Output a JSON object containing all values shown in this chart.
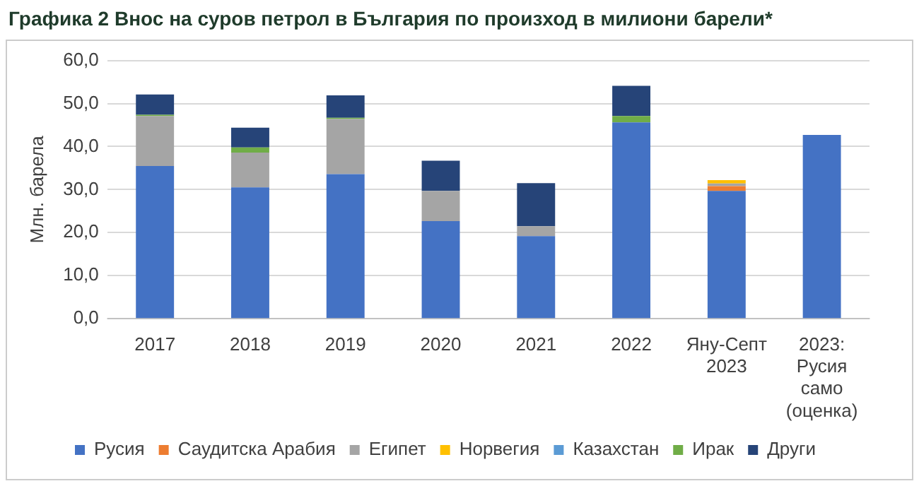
{
  "chart_data": {
    "type": "bar",
    "stacked": true,
    "title": "Графика 2 Внос на суров петрол в България по произход в милиони барели*",
    "ylabel": "Млн. барела",
    "categories": [
      "2017",
      "2018",
      "2019",
      "2020",
      "2021",
      "2022",
      "Яну-Септ\n2023",
      "2023:\nРусия\nсамо\n(оценка)"
    ],
    "series": [
      {
        "name": "Русия",
        "color": "#4472c4",
        "values": [
          35.5,
          30.5,
          33.6,
          22.7,
          19.2,
          45.6,
          29.7,
          42.7
        ]
      },
      {
        "name": "Саудитска Арабия",
        "color": "#ed7d31",
        "values": [
          0,
          0,
          0,
          0,
          0,
          0,
          1.1,
          0
        ]
      },
      {
        "name": "Египет",
        "color": "#a5a5a5",
        "values": [
          11.6,
          8.1,
          12.8,
          7.0,
          2.3,
          0,
          0.6,
          0
        ]
      },
      {
        "name": "Норвегия",
        "color": "#ffc000",
        "values": [
          0,
          0,
          0,
          0,
          0,
          0,
          0.8,
          0
        ]
      },
      {
        "name": "Казахстан",
        "color": "#5b9bd5",
        "values": [
          0,
          0,
          0,
          0,
          0,
          0,
          0,
          0
        ]
      },
      {
        "name": "Ирак",
        "color": "#70ad47",
        "values": [
          0.3,
          1.2,
          0.3,
          0,
          0,
          1.5,
          0,
          0
        ]
      },
      {
        "name": "Други",
        "color": "#264478",
        "values": [
          4.7,
          4.6,
          5.2,
          7.0,
          10.0,
          7.0,
          0,
          0
        ]
      }
    ],
    "ylim": [
      0,
      60
    ],
    "yticks": [
      {
        "value": 0,
        "label": "0,0"
      },
      {
        "value": 10,
        "label": "10,0"
      },
      {
        "value": 20,
        "label": "20,0"
      },
      {
        "value": 30,
        "label": "30,0"
      },
      {
        "value": 40,
        "label": "40,0"
      },
      {
        "value": 50,
        "label": "50,0"
      },
      {
        "value": 60,
        "label": "60,0"
      }
    ],
    "grid": "y",
    "legend": "bottom"
  }
}
